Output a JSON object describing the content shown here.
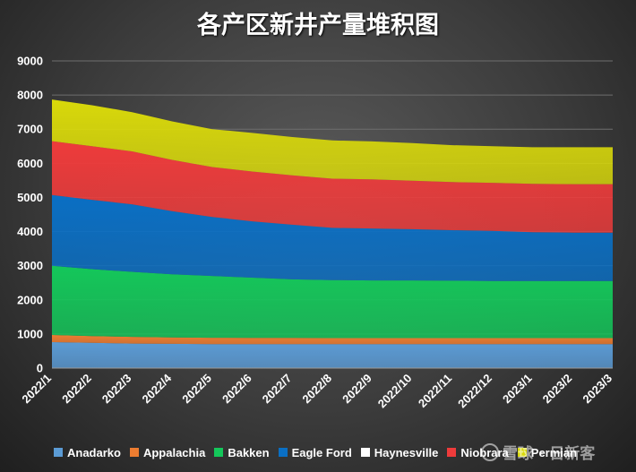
{
  "watermark": "雪球 · 日新客",
  "chart_data": {
    "type": "area",
    "stacked": true,
    "title": "各产区新井产量堆积图",
    "xlabel": "",
    "ylabel": "",
    "ylim": [
      0,
      9000
    ],
    "yticks": [
      0,
      1000,
      2000,
      3000,
      4000,
      5000,
      6000,
      7000,
      8000,
      9000
    ],
    "grid": true,
    "legend_position": "bottom",
    "categories": [
      "2022/1",
      "2022/2",
      "2022/3",
      "2022/4",
      "2022/5",
      "2022/6",
      "2022/7",
      "2022/8",
      "2022/9",
      "2022/10",
      "2022/11",
      "2022/12",
      "2023/1",
      "2023/2",
      "2023/3"
    ],
    "series": [
      {
        "name": "Anadarko",
        "color": "#5b9bd5",
        "values": [
          760,
          740,
          720,
          710,
          700,
          700,
          700,
          700,
          700,
          700,
          700,
          700,
          700,
          700,
          700
        ]
      },
      {
        "name": "Appalachia",
        "color": "#ed7d31",
        "values": [
          210,
          200,
          195,
          190,
          190,
          185,
          185,
          180,
          180,
          180,
          180,
          180,
          180,
          180,
          180
        ]
      },
      {
        "name": "Bakken",
        "color": "#14c75a",
        "values": [
          2030,
          1960,
          1905,
          1850,
          1810,
          1765,
          1715,
          1700,
          1690,
          1690,
          1680,
          1670,
          1670,
          1670,
          1670
        ]
      },
      {
        "name": "Eagle Ford",
        "color": "#0a6fc4",
        "values": [
          2070,
          2030,
          1980,
          1850,
          1730,
          1650,
          1600,
          1530,
          1520,
          1500,
          1480,
          1470,
          1430,
          1420,
          1420
        ]
      },
      {
        "name": "Haynesville",
        "color": "#ffffff",
        "values": [
          0,
          0,
          0,
          0,
          0,
          0,
          0,
          0,
          0,
          0,
          0,
          0,
          0,
          0,
          0
        ]
      },
      {
        "name": "Niobrara",
        "color": "#ee3b3b",
        "values": [
          1580,
          1570,
          1550,
          1500,
          1460,
          1460,
          1450,
          1440,
          1440,
          1420,
          1410,
          1410,
          1420,
          1420,
          1420
        ]
      },
      {
        "name": "Permian",
        "color": "#d9d90a",
        "values": [
          1220,
          1200,
          1150,
          1130,
          1110,
          1130,
          1120,
          1120,
          1110,
          1100,
          1080,
          1070,
          1070,
          1080,
          1080
        ]
      }
    ]
  }
}
